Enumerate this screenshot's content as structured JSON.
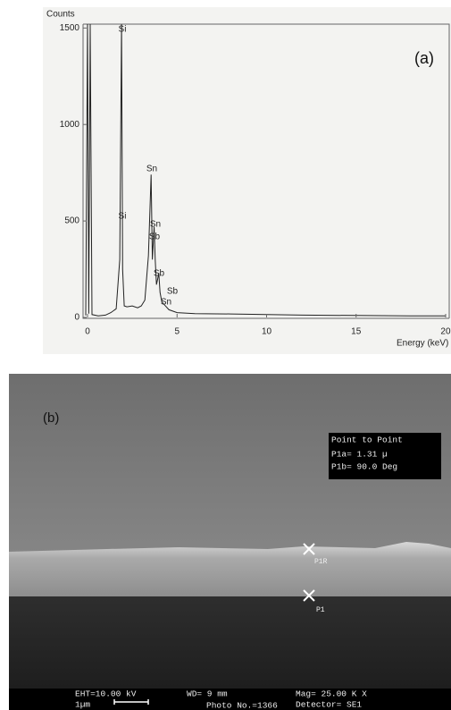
{
  "chart_data": {
    "type": "line",
    "title": "(a)",
    "ylabel": "Counts",
    "xlabel": "Energy (keV)",
    "x": [
      -0.1,
      0.0,
      0.07,
      0.15,
      0.25,
      0.6,
      1.0,
      1.3,
      1.6,
      1.8,
      1.9,
      1.96,
      2.05,
      2.2,
      2.5,
      2.8,
      3.0,
      3.2,
      3.4,
      3.55,
      3.62,
      3.72,
      3.78,
      3.85,
      3.92,
      3.98,
      4.05,
      4.15,
      4.35,
      4.55,
      5.0,
      6.0,
      8.0,
      10.0,
      12.0,
      15.0,
      18.0,
      20.0
    ],
    "values": [
      10,
      1520,
      20,
      1520,
      15,
      8,
      12,
      25,
      45,
      300,
      1520,
      250,
      60,
      55,
      60,
      50,
      60,
      90,
      320,
      740,
      300,
      470,
      300,
      170,
      200,
      230,
      130,
      80,
      60,
      40,
      25,
      20,
      18,
      15,
      12,
      10,
      8,
      8
    ],
    "color": "#222222",
    "xlim": [
      -0.25,
      20.2
    ],
    "ylim": [
      0,
      1520
    ],
    "xticks": [
      0,
      5,
      10,
      15,
      20
    ],
    "yticks": [
      0,
      500,
      1000,
      1500
    ],
    "annotations": [
      "Si",
      "Si",
      "Sn",
      "Sn",
      "Sb",
      "Sb",
      "Sb",
      "Sn"
    ]
  },
  "micrograph": {
    "label": "(b)",
    "measure_title": "Point to Point",
    "measure_a": "P1a=  1.31 µ",
    "measure_b": "P1b= 90.0 Deg",
    "marker_1": "P1R",
    "marker_2": "P1",
    "eht": "EHT=10.00 kV",
    "scale": "1µm",
    "wd": "WD=   9 mm",
    "photo": "Photo No.=1366",
    "mag": "Mag= 25.00 K X",
    "detector": "Detector= SE1"
  }
}
